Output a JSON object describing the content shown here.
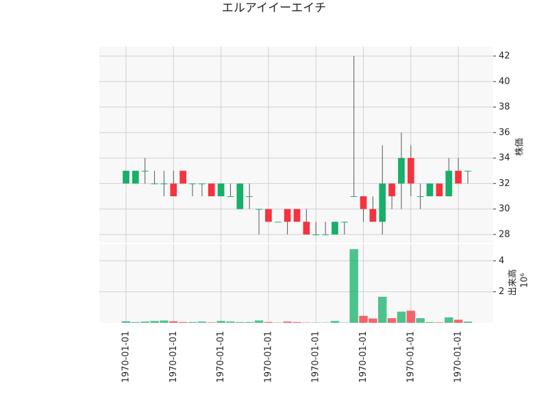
{
  "chart_data": {
    "type": "candlestick",
    "title": "エルアイイーエイチ",
    "categories": [
      "1970-01-01",
      null,
      null,
      null,
      null,
      "1970-01-01",
      null,
      null,
      null,
      null,
      "1970-01-01",
      null,
      null,
      null,
      null,
      "1970-01-01",
      null,
      null,
      null,
      null,
      "1970-01-01",
      null,
      null,
      null,
      null,
      "1970-01-01",
      null,
      null,
      null,
      null,
      "1970-01-01",
      null,
      null,
      null,
      null,
      "1970-01-01",
      null
    ],
    "open": [
      32,
      32,
      33,
      32,
      32,
      32,
      33,
      32,
      32,
      32,
      31,
      31,
      30,
      31,
      30,
      30,
      29,
      30,
      30,
      29,
      28,
      28,
      28,
      29,
      31,
      31,
      30,
      29,
      32,
      32,
      34,
      31,
      31,
      32,
      31,
      33,
      33
    ],
    "high": [
      33,
      33,
      34,
      33,
      33,
      33,
      33,
      32,
      32,
      32,
      32,
      32,
      32,
      32,
      30,
      30,
      29,
      30,
      30,
      30,
      29,
      29,
      29,
      29,
      42,
      31,
      31,
      35,
      32,
      36,
      35,
      32,
      32,
      32,
      34,
      34,
      33
    ],
    "low": [
      32,
      32,
      32,
      32,
      31,
      31,
      32,
      31,
      31,
      31,
      31,
      31,
      30,
      30,
      28,
      29,
      29,
      28,
      29,
      28,
      28,
      28,
      28,
      28,
      31,
      29,
      29,
      28,
      30,
      30,
      31,
      30,
      31,
      31,
      31,
      32,
      32
    ],
    "close": [
      33,
      33,
      33,
      32,
      32,
      31,
      32,
      32,
      32,
      31,
      32,
      31,
      32,
      31,
      30,
      29,
      29,
      29,
      29,
      28,
      28,
      28,
      29,
      29,
      31,
      30,
      29,
      32,
      31,
      34,
      32,
      31,
      32,
      31,
      33,
      32,
      33
    ],
    "volume": [
      0.1,
      0.05,
      0.08,
      0.12,
      0.15,
      0.1,
      0.05,
      0.05,
      0.08,
      0.03,
      0.12,
      0.08,
      0.05,
      0.05,
      0.15,
      0.05,
      0.02,
      0.08,
      0.05,
      0.02,
      0.02,
      0.02,
      0.12,
      0.02,
      4.75,
      0.45,
      0.28,
      1.68,
      0.3,
      0.72,
      0.78,
      0.3,
      0.05,
      0.03,
      0.35,
      0.2,
      0.08
    ],
    "up_color": "#16b06a",
    "down_color": "#f5333f",
    "ylabel": "株価",
    "ylim": [
      27.35,
      42.75
    ],
    "yticks": [
      28,
      30,
      32,
      34,
      36,
      38,
      40,
      42
    ],
    "volume_label": "出来高",
    "volume_scale": "10⁶",
    "volume_ylim": [
      0,
      5.07
    ],
    "volume_yticks": [
      2,
      4
    ],
    "grid": true
  }
}
